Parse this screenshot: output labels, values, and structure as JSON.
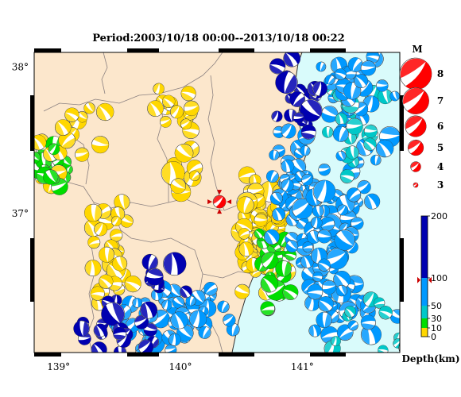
{
  "title": "Period:2003/10/18 00:00--2013/10/18 00:22",
  "map": {
    "lon_range": [
      138.8,
      141.8
    ],
    "lat_range": [
      36.05,
      38.1
    ],
    "lon_ticks": [
      {
        "value": 139,
        "label": "139°"
      },
      {
        "value": 140,
        "label": "140°"
      },
      {
        "value": 141,
        "label": "141°"
      }
    ],
    "lat_ticks": [
      {
        "value": 38,
        "label": "38°"
      },
      {
        "value": 37,
        "label": "37°"
      }
    ],
    "colors": {
      "land": "#fce7cc",
      "sea": "#d9fbfb",
      "boundary": "#8a8080",
      "coast": "#333333"
    },
    "mainshock": {
      "lon": 140.32,
      "lat": 37.08,
      "magnitude": 5
    }
  },
  "magnitude_legend": {
    "title": "M",
    "items": [
      {
        "label": "8",
        "mag": 8
      },
      {
        "label": "7",
        "mag": 7
      },
      {
        "label": "6",
        "mag": 6
      },
      {
        "label": "5",
        "mag": 5
      },
      {
        "label": "4",
        "mag": 4
      },
      {
        "label": "3",
        "mag": 3
      }
    ],
    "color": "#ff0000"
  },
  "depth_scale": {
    "title": "Depth(km)",
    "ticks": [
      "200",
      "100",
      "50",
      "30",
      "10",
      "0"
    ],
    "tick_values": [
      200,
      100,
      50,
      30,
      10,
      0
    ],
    "bands": [
      {
        "from": 0,
        "to": 10,
        "color": "#ffd700"
      },
      {
        "from": 10,
        "to": 30,
        "color": "#00dd00"
      },
      {
        "from": 30,
        "to": 50,
        "color": "#00c8c8"
      },
      {
        "from": 50,
        "to": 100,
        "color": "#0099ff"
      },
      {
        "from": 100,
        "to": 200,
        "color": "#0000b0"
      }
    ],
    "marker_depth": 96
  }
}
